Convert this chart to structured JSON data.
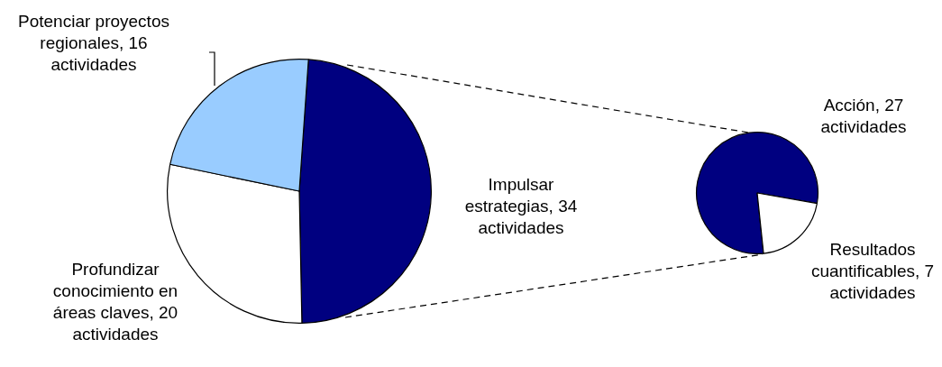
{
  "chart_data": [
    {
      "type": "pie",
      "categories": [
        "Impulsar estrategias, 34 actividades",
        "Profundizar conocimiento en áreas claves, 20 actividades",
        "Potenciar proyectos regionales, 16 actividades"
      ],
      "values": [
        34,
        20,
        16
      ],
      "colors": [
        "#000080",
        "#ffffff",
        "#99ccff"
      ]
    },
    {
      "type": "pie",
      "categories": [
        "Acción,  27 actividades",
        "Resultados cuantificables, 7 actividades"
      ],
      "values": [
        27,
        7
      ],
      "colors": [
        "#000080",
        "#ffffff"
      ]
    }
  ]
}
